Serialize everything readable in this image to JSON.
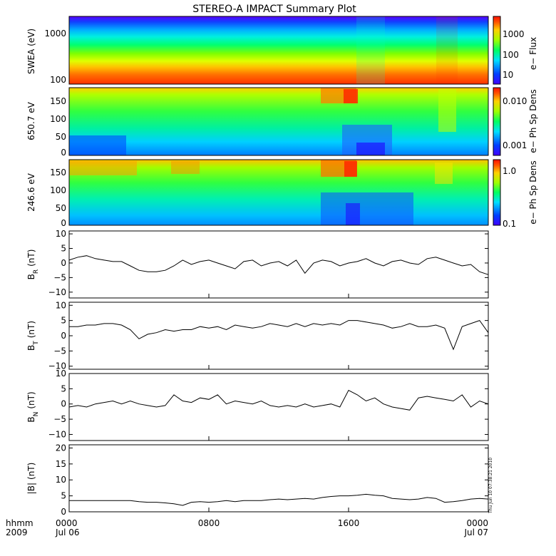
{
  "chart_data": {
    "type": "multi-panel",
    "title": "STEREO-A IMPACT Summary Plot",
    "x_axis": {
      "labels": [
        {
          "time": "0000",
          "date": "Jul 06"
        },
        {
          "time": "0800",
          "date": ""
        },
        {
          "time": "1600",
          "date": ""
        },
        {
          "time": "0000",
          "date": "Jul 07"
        }
      ],
      "corner_top": "hhmm",
      "corner_bottom": "2009",
      "range_hours": [
        0,
        24
      ]
    },
    "timestamp": "Thu Jun 10 07:38:21 2010",
    "spectrograms": [
      {
        "name": "swea",
        "ylabel": "SWEA (eV)",
        "y_scale": "log",
        "ylim": [
          90,
          2000
        ],
        "yticks": [
          "1000",
          "100"
        ],
        "colorbar_label": "e− Flux",
        "colorbar_ticks": [
          "1000",
          "100",
          "10"
        ]
      },
      {
        "name": "pad650",
        "ylabel": "650.7 eV",
        "ylim": [
          0,
          180
        ],
        "yticks": [
          "150",
          "100",
          "50",
          "0"
        ],
        "colorbar_label": "e− Ph Sp Dens",
        "colorbar_ticks": [
          "0.010",
          "0.001"
        ]
      },
      {
        "name": "pad246",
        "ylabel": "246.6 eV",
        "ylim": [
          0,
          180
        ],
        "yticks": [
          "150",
          "100",
          "50",
          "0"
        ],
        "colorbar_label": "e− Ph Sp Dens",
        "colorbar_ticks": [
          "1.0",
          "0.1"
        ]
      }
    ],
    "line_panels": [
      {
        "name": "br",
        "ylabel_main": "B",
        "ylabel_sub": "R",
        "ylabel_unit": "(nT)",
        "ylim": [
          -12,
          11
        ],
        "yticks": [
          "10",
          "5",
          "0",
          "−5",
          "−10"
        ],
        "x": [
          0,
          0.5,
          1,
          1.5,
          2,
          2.5,
          3,
          3.5,
          4,
          4.5,
          5,
          5.5,
          6,
          6.5,
          7,
          7.5,
          8,
          8.5,
          9,
          9.5,
          10,
          10.5,
          11,
          11.5,
          12,
          12.5,
          13,
          13.5,
          14,
          14.5,
          15,
          15.5,
          16,
          16.5,
          17,
          17.5,
          18,
          18.5,
          19,
          19.5,
          20,
          20.5,
          21,
          21.5,
          22,
          22.5,
          23,
          23.5,
          24
        ],
        "y": [
          1,
          2,
          2.5,
          1.5,
          1,
          0.5,
          0.5,
          -1,
          -2.5,
          -3,
          -3,
          -2.5,
          -1,
          1,
          -0.5,
          0.5,
          1,
          0,
          -1,
          -2,
          0.5,
          1,
          -1,
          0,
          0.5,
          -1,
          1,
          -3.5,
          0,
          1,
          0.5,
          -1,
          0,
          0.5,
          1.5,
          0,
          -1,
          0.5,
          1,
          0,
          -0.5,
          1.5,
          2,
          1,
          0,
          -1,
          -0.5,
          -3,
          -4
        ]
      },
      {
        "name": "bt",
        "ylabel_main": "B",
        "ylabel_sub": "T",
        "ylabel_unit": "(nT)",
        "ylim": [
          -11,
          11
        ],
        "yticks": [
          "10",
          "5",
          "0",
          "−5",
          "−10"
        ],
        "x": [
          0,
          0.5,
          1,
          1.5,
          2,
          2.5,
          3,
          3.5,
          4,
          4.5,
          5,
          5.5,
          6,
          6.5,
          7,
          7.5,
          8,
          8.5,
          9,
          9.5,
          10,
          10.5,
          11,
          11.5,
          12,
          12.5,
          13,
          13.5,
          14,
          14.5,
          15,
          15.5,
          16,
          16.5,
          17,
          17.5,
          18,
          18.5,
          19,
          19.5,
          20,
          20.5,
          21,
          21.5,
          22,
          22.5,
          23,
          23.5,
          24
        ],
        "y": [
          3,
          3,
          3.5,
          3.5,
          4,
          4,
          3.5,
          2,
          -1,
          0.5,
          1,
          2,
          1.5,
          2,
          2,
          3,
          2.5,
          3,
          2,
          3.5,
          3,
          2.5,
          3,
          4,
          3.5,
          3,
          4,
          3,
          4,
          3.5,
          4,
          3.5,
          5,
          5,
          4.5,
          4,
          3.5,
          2.5,
          3,
          4,
          3,
          3,
          3.5,
          2.5,
          -4.5,
          3,
          4,
          5,
          1
        ]
      },
      {
        "name": "bn",
        "ylabel_main": "B",
        "ylabel_sub": "N",
        "ylabel_unit": "(nT)",
        "ylim": [
          -12,
          10
        ],
        "yticks": [
          "10",
          "5",
          "0",
          "−5",
          "−10"
        ],
        "x": [
          0,
          0.5,
          1,
          1.5,
          2,
          2.5,
          3,
          3.5,
          4,
          4.5,
          5,
          5.5,
          6,
          6.5,
          7,
          7.5,
          8,
          8.5,
          9,
          9.5,
          10,
          10.5,
          11,
          11.5,
          12,
          12.5,
          13,
          13.5,
          14,
          14.5,
          15,
          15.5,
          16,
          16.5,
          17,
          17.5,
          18,
          18.5,
          19,
          19.5,
          20,
          20.5,
          21,
          21.5,
          22,
          22.5,
          23,
          23.5,
          24
        ],
        "y": [
          -1,
          -0.5,
          -1,
          0,
          0.5,
          1,
          0,
          1,
          0,
          -0.5,
          -1,
          -0.5,
          3,
          1,
          0.5,
          2,
          1.5,
          3,
          0,
          1,
          0.5,
          0,
          1,
          -0.5,
          -1,
          -0.5,
          -1,
          0,
          -1,
          -0.5,
          0,
          -1,
          4.5,
          3,
          1,
          2,
          0,
          -1,
          -1.5,
          -2,
          2,
          2.5,
          2,
          1.5,
          1,
          3,
          -1,
          1,
          0
        ]
      },
      {
        "name": "bmag",
        "ylabel_main": "|B|",
        "ylabel_sub": "",
        "ylabel_unit": "(nT)",
        "ylim": [
          0,
          21
        ],
        "yticks": [
          "20",
          "15",
          "10",
          "5",
          "0"
        ],
        "x": [
          0,
          0.5,
          1,
          1.5,
          2,
          2.5,
          3,
          3.5,
          4,
          4.5,
          5,
          5.5,
          6,
          6.5,
          7,
          7.5,
          8,
          8.5,
          9,
          9.5,
          10,
          10.5,
          11,
          11.5,
          12,
          12.5,
          13,
          13.5,
          14,
          14.5,
          15,
          15.5,
          16,
          16.5,
          17,
          17.5,
          18,
          18.5,
          19,
          19.5,
          20,
          20.5,
          21,
          21.5,
          22,
          22.5,
          23,
          23.5,
          24
        ],
        "y": [
          3.5,
          3.5,
          3.5,
          3.5,
          3.5,
          3.5,
          3.5,
          3.5,
          3.2,
          3,
          3,
          2.8,
          2.5,
          2,
          3,
          3.2,
          3,
          3.2,
          3.5,
          3.2,
          3.5,
          3.5,
          3.5,
          3.8,
          4,
          3.8,
          4,
          4.2,
          4,
          4.5,
          4.8,
          5,
          5,
          5.2,
          5.5,
          5.2,
          5,
          4.2,
          4,
          3.8,
          4,
          4.5,
          4.2,
          3,
          3.2,
          3.5,
          4,
          4.2,
          4
        ]
      }
    ]
  }
}
